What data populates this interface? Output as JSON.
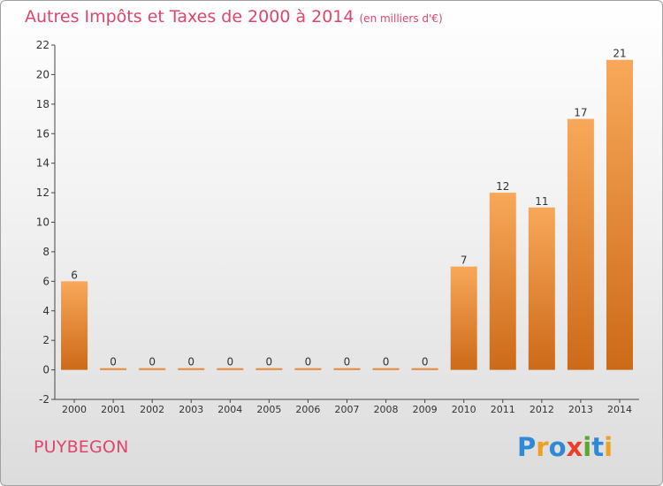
{
  "title": "Autres Impôts et Taxes de 2000 à 2014",
  "unit": "(en milliers d'€)",
  "commune": "PUYBEGON",
  "logo": {
    "text": "Proxiti",
    "letters": [
      {
        "ch": "P",
        "color": "#2e89d6"
      },
      {
        "ch": "r",
        "color": "#f0a020"
      },
      {
        "ch": "o",
        "color": "#2e89d6"
      },
      {
        "ch": "x",
        "color": "#e8402a"
      },
      {
        "ch": "i",
        "color": "#5aa832"
      },
      {
        "ch": "t",
        "color": "#2e89d6"
      },
      {
        "ch": "i",
        "color": "#f0a020"
      }
    ]
  },
  "chart_data": {
    "type": "bar",
    "categories": [
      "2000",
      "2001",
      "2002",
      "2003",
      "2004",
      "2005",
      "2006",
      "2007",
      "2008",
      "2009",
      "2010",
      "2011",
      "2012",
      "2013",
      "2014"
    ],
    "values": [
      6,
      0,
      0,
      0,
      0,
      0,
      0,
      0,
      0,
      0,
      7,
      12,
      11,
      17,
      21
    ],
    "ylim": [
      -2,
      22
    ],
    "yticks": [
      -2,
      0,
      2,
      4,
      6,
      8,
      10,
      12,
      14,
      16,
      18,
      20,
      22
    ],
    "bar_color_top": "#f8a85a",
    "bar_color_bottom": "#cc6a18",
    "grid": false
  }
}
